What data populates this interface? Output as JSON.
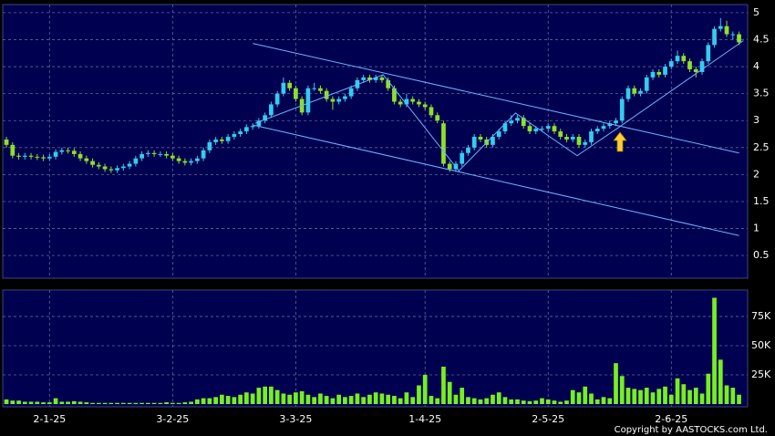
{
  "chart_data": {
    "type": "candlestick",
    "open": [
      2.65,
      2.55,
      2.35,
      2.33,
      2.35,
      2.33,
      2.32,
      2.3,
      2.33,
      2.42,
      2.45,
      2.44,
      2.38,
      2.3,
      2.25,
      2.18,
      2.15,
      2.1,
      2.08,
      2.12,
      2.15,
      2.2,
      2.3,
      2.38,
      2.4,
      2.38,
      2.38,
      2.35,
      2.3,
      2.25,
      2.22,
      2.25,
      2.3,
      2.45,
      2.6,
      2.65,
      2.62,
      2.7,
      2.75,
      2.8,
      2.88,
      2.9,
      3.0,
      3.1,
      3.3,
      3.5,
      3.7,
      3.6,
      3.4,
      3.15,
      3.6,
      3.6,
      3.55,
      3.4,
      3.35,
      3.4,
      3.45,
      3.6,
      3.75,
      3.8,
      3.75,
      3.8,
      3.75,
      3.6,
      3.35,
      3.3,
      3.4,
      3.35,
      3.3,
      3.25,
      3.1,
      2.95,
      2.2,
      2.1,
      2.2,
      2.4,
      2.5,
      2.7,
      2.65,
      2.55,
      2.7,
      2.8,
      2.95,
      3.0,
      3.05,
      2.9,
      2.8,
      2.85,
      2.85,
      2.9,
      2.8,
      2.7,
      2.65,
      2.7,
      2.55,
      2.6,
      2.8,
      2.85,
      2.9,
      2.95,
      3.0,
      3.4,
      3.6,
      3.5,
      3.55,
      3.8,
      3.9,
      3.85,
      4.0,
      4.1,
      4.2,
      4.1,
      3.95,
      3.9,
      4.1,
      4.4,
      4.7,
      4.75,
      4.6,
      4.6
    ],
    "high": [
      2.7,
      2.6,
      2.4,
      2.4,
      2.4,
      2.38,
      2.37,
      2.38,
      2.47,
      2.5,
      2.5,
      2.49,
      2.43,
      2.35,
      2.3,
      2.23,
      2.2,
      2.15,
      2.17,
      2.2,
      2.25,
      2.35,
      2.43,
      2.45,
      2.45,
      2.43,
      2.43,
      2.4,
      2.35,
      2.3,
      2.3,
      2.35,
      2.5,
      2.65,
      2.7,
      2.7,
      2.75,
      2.8,
      2.85,
      2.93,
      2.95,
      3.05,
      3.15,
      3.35,
      3.55,
      3.8,
      3.75,
      3.65,
      3.45,
      3.65,
      3.7,
      3.65,
      3.6,
      3.45,
      3.45,
      3.5,
      3.65,
      3.8,
      3.85,
      3.85,
      3.85,
      3.85,
      3.8,
      3.65,
      3.4,
      3.5,
      3.45,
      3.4,
      3.35,
      3.3,
      3.15,
      3.0,
      2.25,
      2.25,
      2.45,
      2.55,
      2.75,
      2.75,
      2.7,
      2.75,
      2.85,
      3.0,
      3.1,
      3.1,
      3.1,
      2.95,
      2.9,
      2.9,
      2.95,
      2.95,
      2.85,
      2.75,
      2.75,
      2.75,
      2.65,
      2.85,
      2.9,
      2.95,
      3.0,
      3.05,
      3.45,
      3.65,
      3.65,
      3.6,
      3.85,
      3.95,
      3.95,
      4.05,
      4.15,
      4.3,
      4.25,
      4.15,
      4.0,
      4.15,
      4.45,
      4.75,
      4.9,
      4.85,
      4.65,
      4.65
    ],
    "low": [
      2.5,
      2.3,
      2.28,
      2.28,
      2.28,
      2.27,
      2.25,
      2.25,
      2.28,
      2.37,
      2.39,
      2.33,
      2.25,
      2.2,
      2.13,
      2.1,
      2.05,
      2.03,
      2.03,
      2.07,
      2.1,
      2.15,
      2.25,
      2.33,
      2.33,
      2.33,
      2.3,
      2.25,
      2.2,
      2.17,
      2.17,
      2.2,
      2.25,
      2.4,
      2.55,
      2.57,
      2.57,
      2.65,
      2.7,
      2.75,
      2.83,
      2.85,
      2.95,
      3.05,
      3.25,
      3.45,
      3.55,
      3.35,
      3.1,
      3.1,
      3.55,
      3.5,
      3.35,
      3.2,
      3.3,
      3.35,
      3.4,
      3.55,
      3.7,
      3.7,
      3.7,
      3.7,
      3.55,
      3.3,
      3.25,
      3.25,
      3.3,
      3.25,
      3.2,
      3.05,
      2.95,
      2.15,
      2.05,
      2.05,
      2.15,
      2.35,
      2.45,
      2.6,
      2.5,
      2.5,
      2.65,
      2.75,
      2.9,
      2.95,
      2.85,
      2.75,
      2.75,
      2.8,
      2.8,
      2.75,
      2.65,
      2.6,
      2.6,
      2.5,
      2.5,
      2.55,
      2.75,
      2.8,
      2.85,
      2.9,
      2.95,
      3.35,
      3.45,
      3.45,
      3.5,
      3.75,
      3.8,
      3.8,
      3.95,
      4.05,
      4.05,
      3.9,
      3.8,
      3.85,
      4.05,
      4.35,
      4.65,
      4.55,
      4.5,
      4.4
    ],
    "close": [
      2.55,
      2.35,
      2.33,
      2.35,
      2.33,
      2.32,
      2.3,
      2.33,
      2.42,
      2.45,
      2.44,
      2.38,
      2.3,
      2.25,
      2.18,
      2.15,
      2.1,
      2.08,
      2.12,
      2.15,
      2.2,
      2.3,
      2.38,
      2.4,
      2.38,
      2.38,
      2.35,
      2.3,
      2.25,
      2.22,
      2.25,
      2.3,
      2.45,
      2.6,
      2.65,
      2.62,
      2.7,
      2.75,
      2.8,
      2.88,
      2.9,
      3.0,
      3.1,
      3.3,
      3.5,
      3.7,
      3.6,
      3.4,
      3.15,
      3.6,
      3.6,
      3.55,
      3.4,
      3.35,
      3.4,
      3.45,
      3.6,
      3.75,
      3.8,
      3.75,
      3.8,
      3.75,
      3.6,
      3.35,
      3.3,
      3.4,
      3.35,
      3.3,
      3.25,
      3.1,
      3.0,
      2.2,
      2.1,
      2.2,
      2.4,
      2.5,
      2.7,
      2.65,
      2.55,
      2.7,
      2.8,
      2.95,
      3.0,
      3.05,
      2.9,
      2.8,
      2.85,
      2.85,
      2.9,
      2.8,
      2.7,
      2.65,
      2.7,
      2.55,
      2.6,
      2.8,
      2.85,
      2.9,
      2.95,
      3.0,
      3.4,
      3.6,
      3.5,
      3.55,
      3.8,
      3.9,
      3.85,
      4.0,
      4.1,
      4.2,
      4.1,
      3.95,
      3.9,
      4.1,
      4.4,
      4.7,
      4.75,
      4.6,
      4.6,
      4.45
    ],
    "up_color": "#33ccf0",
    "down_color": "#8ee02a",
    "ylim": [
      0.08,
      5.15
    ],
    "yticks": [
      0.5,
      1,
      1.5,
      2,
      2.5,
      3,
      3.5,
      4,
      4.5,
      5
    ],
    "xlim": [
      -0.6,
      120.4
    ],
    "xticks": [
      {
        "value": 7,
        "label": "2-1-25"
      },
      {
        "value": 27,
        "label": "3-2-25"
      },
      {
        "value": 47,
        "label": "3-3-25"
      },
      {
        "value": 68,
        "label": "1-4-25"
      },
      {
        "value": 88,
        "label": "2-5-25"
      },
      {
        "value": 108,
        "label": "2-6-25"
      }
    ],
    "grid": true,
    "trendline_color": "#6ab4ff",
    "trendlines": [
      {
        "points": [
          [
            40,
            4.43
          ],
          [
            119,
            2.4
          ]
        ]
      },
      {
        "points": [
          [
            40,
            2.92
          ],
          [
            119,
            0.87
          ]
        ]
      },
      {
        "points": [
          [
            40.4,
            2.95
          ],
          [
            61.2,
            3.85
          ],
          [
            73.5,
            2.07
          ],
          [
            82.7,
            3.14
          ],
          [
            92.7,
            2.35
          ],
          [
            99.4,
            2.87
          ],
          [
            119.7,
            4.48
          ]
        ]
      }
    ],
    "volume": {
      "color": "#77ee22",
      "values": [
        4000,
        3000,
        3000,
        2000,
        2000,
        2000,
        1500,
        1500,
        5000,
        2000,
        2000,
        2500,
        2000,
        1500,
        1000,
        1000,
        1000,
        1000,
        1000,
        1000,
        1000,
        1000,
        1000,
        1000,
        1000,
        1000,
        1500,
        1000,
        1000,
        1500,
        2000,
        4000,
        5000,
        5000,
        6000,
        8000,
        7000,
        6000,
        8000,
        10000,
        9000,
        14000,
        15000,
        15000,
        12000,
        9000,
        8000,
        10000,
        11000,
        8000,
        6000,
        9000,
        7000,
        5000,
        8000,
        6000,
        7000,
        9000,
        6000,
        8000,
        10000,
        9000,
        8000,
        7000,
        5000,
        10000,
        6000,
        16000,
        25000,
        7000,
        5000,
        32000,
        19000,
        8000,
        14000,
        6000,
        5000,
        4000,
        5000,
        8000,
        10000,
        6000,
        4000,
        4000,
        3000,
        2500,
        3000,
        5000,
        4000,
        3000,
        2000,
        3000,
        12000,
        10000,
        15000,
        9000,
        4000,
        6000,
        5000,
        35000,
        24000,
        14000,
        13000,
        12000,
        14000,
        10000,
        13000,
        15000,
        8000,
        22000,
        17000,
        12000,
        14000,
        9000,
        26000,
        91000,
        38000,
        16000,
        14000,
        8000
      ],
      "ylim": [
        0,
        97600
      ],
      "yticks": [
        {
          "value": 25000,
          "label": "25K"
        },
        {
          "value": 50000,
          "label": "50K"
        },
        {
          "value": 75000,
          "label": "75K"
        }
      ]
    },
    "credit": "Copyright by AASTOCKS.com Ltd."
  }
}
